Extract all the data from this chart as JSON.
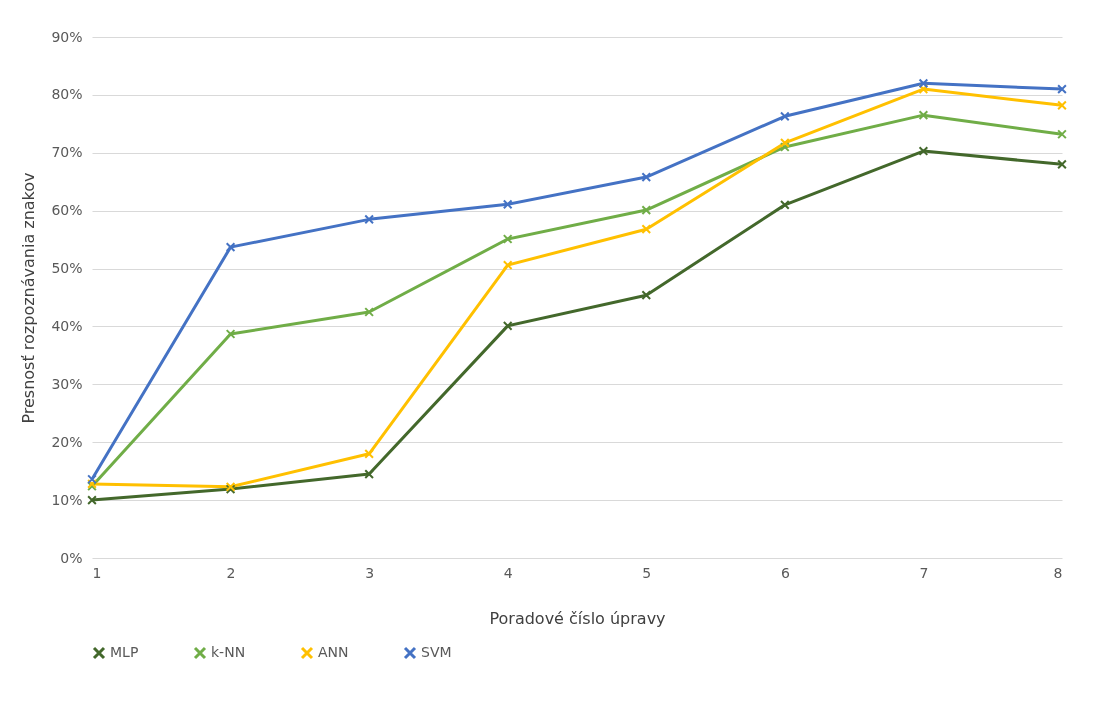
{
  "chart_data": {
    "type": "line",
    "xlabel": "Poradové číslo úpravy",
    "ylabel": "Presnosť rozpoznávania znakov",
    "x": [
      1,
      2,
      3,
      4,
      5,
      6,
      7,
      8
    ],
    "xlim": [
      1,
      8
    ],
    "xticks": [
      1,
      2,
      3,
      4,
      5,
      6,
      7,
      8
    ],
    "ylim": [
      0,
      90
    ],
    "yticks": [
      {
        "value": 0,
        "label": "0%"
      },
      {
        "value": 10,
        "label": "10%"
      },
      {
        "value": 20,
        "label": "20%"
      },
      {
        "value": 30,
        "label": "30%"
      },
      {
        "value": 40,
        "label": "40%"
      },
      {
        "value": 50,
        "label": "50%"
      },
      {
        "value": 60,
        "label": "60%"
      },
      {
        "value": 70,
        "label": "70%"
      },
      {
        "value": 80,
        "label": "80%"
      },
      {
        "value": 90,
        "label": "90%"
      }
    ],
    "grid": "y",
    "legend": "bottom",
    "marker": "cross",
    "line_style": "solid",
    "series": [
      {
        "name": "MLP",
        "color": "#43682b",
        "values": [
          10.0,
          11.9,
          14.5,
          40.1,
          45.4,
          61.0,
          70.3,
          68.0
        ]
      },
      {
        "name": "k-NN",
        "color": "#70ad47",
        "values": [
          12.4,
          38.7,
          42.5,
          55.1,
          60.1,
          71.0,
          76.5,
          73.2
        ]
      },
      {
        "name": "ANN",
        "color": "#ffc000",
        "values": [
          12.8,
          12.3,
          18.0,
          50.6,
          56.8,
          71.7,
          81.0,
          78.2
        ]
      },
      {
        "name": "SVM",
        "color": "#4472c4",
        "values": [
          13.6,
          53.7,
          58.5,
          61.1,
          65.8,
          76.3,
          82.0,
          81.0
        ]
      }
    ]
  }
}
